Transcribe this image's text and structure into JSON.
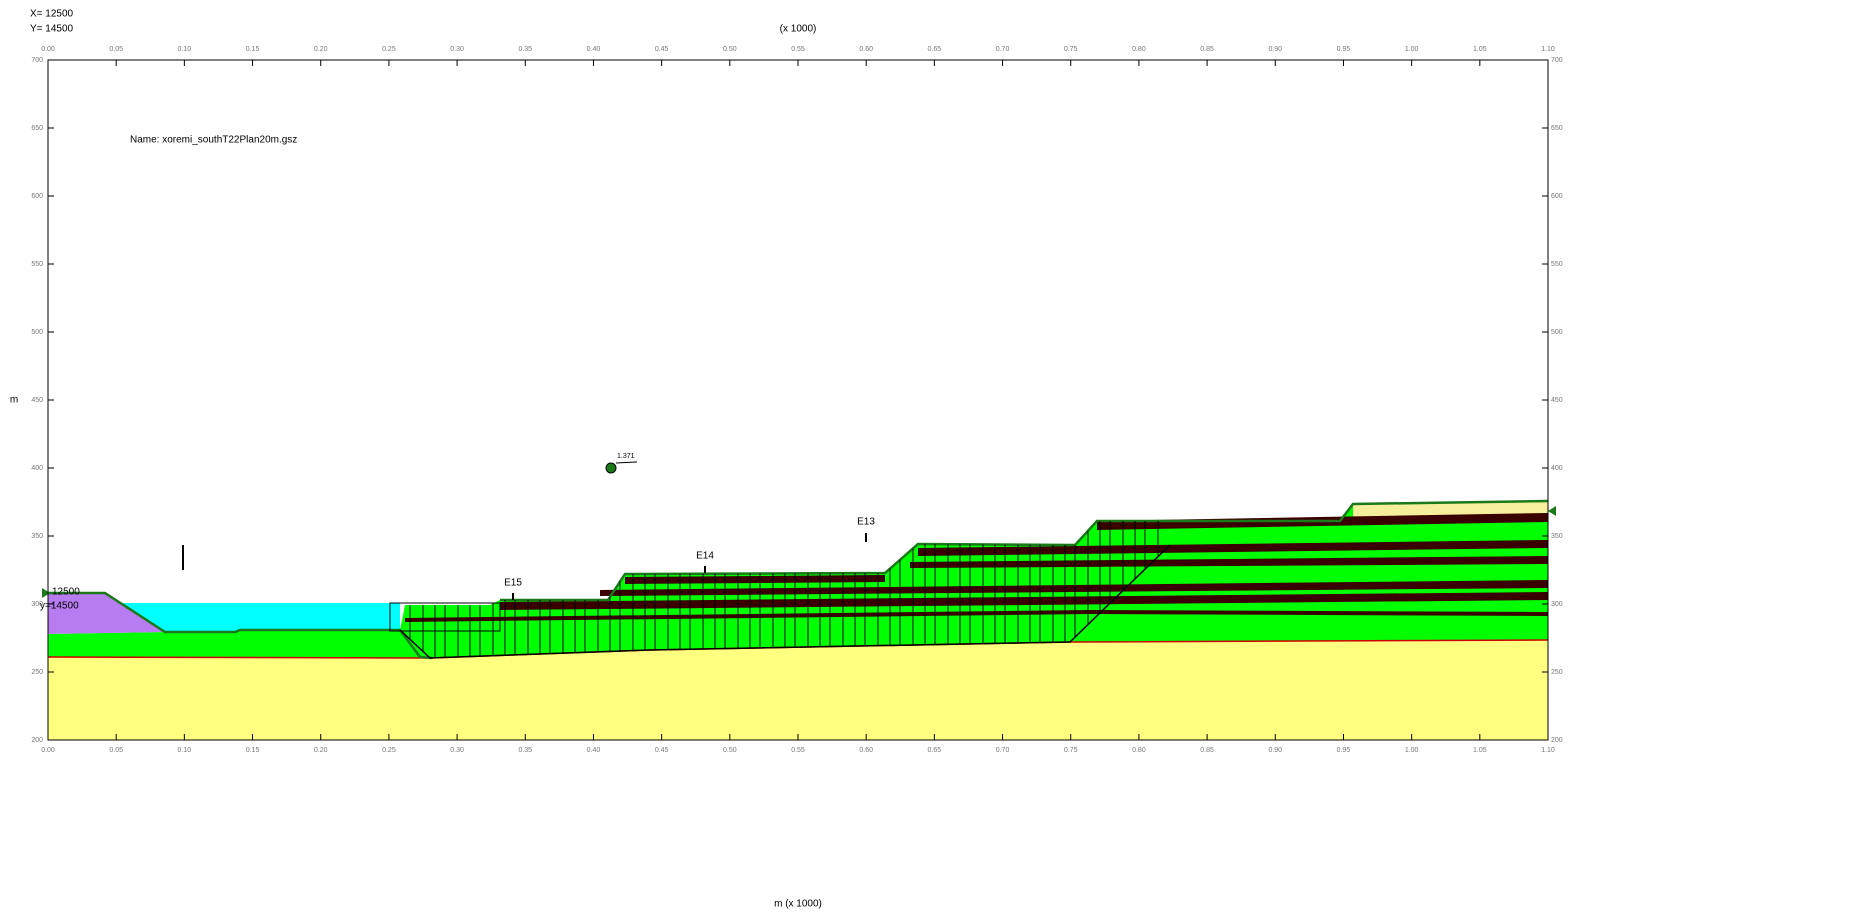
{
  "header": {
    "corner_x": "X= 12500",
    "corner_y": "Y= 14500",
    "x_scale_top": "(x 1000)"
  },
  "axes": {
    "x_title": "m (x 1000)",
    "y_title": "m",
    "xlim": [
      0,
      1.1
    ],
    "ylim": [
      200,
      700
    ],
    "xticks": [
      {
        "value": 0,
        "label": "0.00"
      },
      {
        "value": 0.05,
        "label": "0.05"
      },
      {
        "value": 0.1,
        "label": "0.10"
      },
      {
        "value": 0.15,
        "label": "0.15"
      },
      {
        "value": 0.2,
        "label": "0.20"
      },
      {
        "value": 0.25,
        "label": "0.25"
      },
      {
        "value": 0.3,
        "label": "0.30"
      },
      {
        "value": 0.35,
        "label": "0.35"
      },
      {
        "value": 0.4,
        "label": "0.40"
      },
      {
        "value": 0.45,
        "label": "0.45"
      },
      {
        "value": 0.5,
        "label": "0.50"
      },
      {
        "value": 0.55,
        "label": "0.55"
      },
      {
        "value": 0.6,
        "label": "0.60"
      },
      {
        "value": 0.65,
        "label": "0.65"
      },
      {
        "value": 0.7,
        "label": "0.70"
      },
      {
        "value": 0.75,
        "label": "0.75"
      },
      {
        "value": 0.8,
        "label": "0.80"
      },
      {
        "value": 0.85,
        "label": "0.85"
      },
      {
        "value": 0.9,
        "label": "0.90"
      },
      {
        "value": 0.95,
        "label": "0.95"
      },
      {
        "value": 1.0,
        "label": "1.00"
      },
      {
        "value": 1.05,
        "label": "1.05"
      },
      {
        "value": 1.1,
        "label": "1.10"
      }
    ],
    "yticks": [
      200,
      250,
      300,
      350,
      400,
      450,
      500,
      550,
      600,
      650,
      700
    ]
  },
  "annotations": {
    "file_name": "Name: xoremi_southT22Plan20m.gsz",
    "factor_of_safety": "1.371",
    "sections": [
      "E15",
      "E14",
      "E13"
    ],
    "pivot_x": "12500",
    "pivot_y": "y=14500"
  }
}
